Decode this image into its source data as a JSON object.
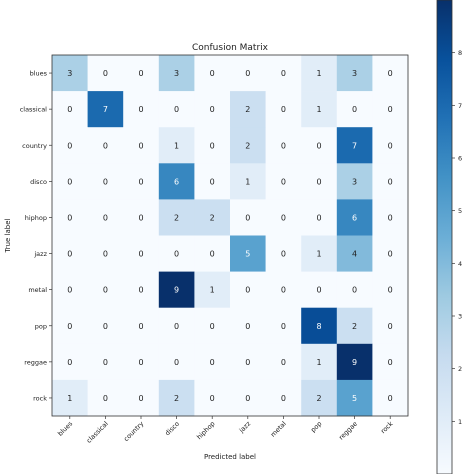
{
  "chart_data": {
    "type": "heatmap",
    "title": "Confusion Matrix",
    "xlabel": "Predicted label",
    "ylabel": "True label",
    "labels": [
      "blues",
      "classical",
      "country",
      "disco",
      "hiphop",
      "jazz",
      "metal",
      "pop",
      "reggae",
      "rock"
    ],
    "matrix": [
      [
        3,
        0,
        0,
        3,
        0,
        0,
        0,
        1,
        3,
        0
      ],
      [
        0,
        7,
        0,
        0,
        0,
        2,
        0,
        1,
        0,
        0
      ],
      [
        0,
        0,
        0,
        1,
        0,
        2,
        0,
        0,
        7,
        0
      ],
      [
        0,
        0,
        0,
        6,
        0,
        1,
        0,
        0,
        3,
        0
      ],
      [
        0,
        0,
        0,
        2,
        2,
        0,
        0,
        0,
        6,
        0
      ],
      [
        0,
        0,
        0,
        0,
        0,
        5,
        0,
        1,
        4,
        0
      ],
      [
        0,
        0,
        0,
        9,
        1,
        0,
        0,
        0,
        0,
        0
      ],
      [
        0,
        0,
        0,
        0,
        0,
        0,
        0,
        8,
        2,
        0
      ],
      [
        0,
        0,
        0,
        0,
        0,
        0,
        0,
        1,
        9,
        0
      ],
      [
        1,
        0,
        0,
        2,
        0,
        0,
        0,
        2,
        5,
        0
      ]
    ],
    "color_range": [
      0,
      9
    ],
    "colormap": "Blues",
    "colorbar_ticks": [
      1,
      2,
      3,
      4,
      5,
      6,
      7,
      8
    ],
    "grid": false,
    "colorbar_placement": "right"
  }
}
